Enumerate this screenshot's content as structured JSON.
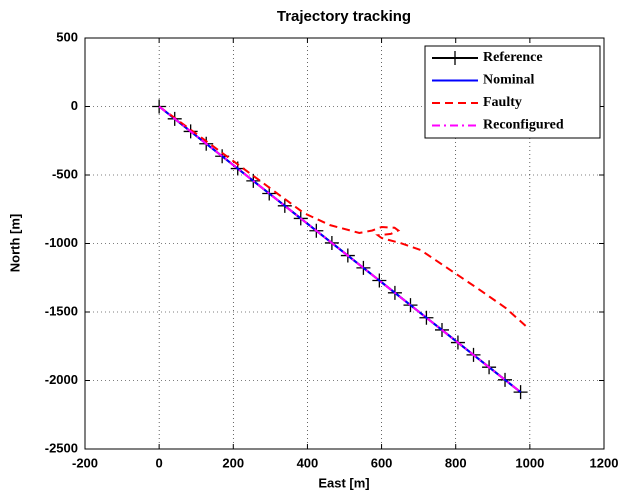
{
  "chart_data": {
    "type": "line",
    "title": "Trajectory tracking",
    "x_label": "East [m]",
    "y_label": "North [m]",
    "xlim": [
      -200,
      1200
    ],
    "ylim": [
      -2500,
      500
    ],
    "xticks": [
      -200,
      0,
      200,
      400,
      600,
      800,
      1000,
      1200
    ],
    "yticks": [
      -2500,
      -2000,
      -1500,
      -1000,
      -500,
      0,
      500
    ],
    "grid": true,
    "legend": "northeast",
    "series": [
      {
        "name": "Reference",
        "color": "#000000",
        "linestyle": "-",
        "marker": "+",
        "x": [
          0,
          42,
          85,
          127,
          170,
          212,
          254,
          297,
          339,
          382,
          424,
          466,
          509,
          551,
          594,
          636,
          678,
          721,
          763,
          806,
          848,
          890,
          933,
          975
        ],
        "values": [
          0,
          -90,
          -182,
          -272,
          -363,
          -453,
          -543,
          -635,
          -725,
          -817,
          -907,
          -996,
          -1088,
          -1178,
          -1270,
          -1360,
          -1450,
          -1542,
          -1631,
          -1723,
          -1813,
          -1903,
          -1995,
          -2085
        ]
      },
      {
        "name": "Nominal",
        "color": "#0000ff",
        "linestyle": "-",
        "x": [
          0,
          975
        ],
        "values": [
          0,
          -2085
        ]
      },
      {
        "name": "Faulty",
        "color": "#ff0000",
        "linestyle": "--",
        "x": [
          0,
          390,
          460,
          540,
          575,
          600,
          635,
          645,
          625,
          590,
          600,
          650,
          705,
          785,
          865,
          935,
          995
        ],
        "values": [
          0,
          -777,
          -865,
          -923,
          -905,
          -880,
          -885,
          -905,
          -930,
          -940,
          -960,
          -996,
          -1047,
          -1193,
          -1339,
          -1471,
          -1617
        ]
      },
      {
        "name": "Reconfigured",
        "color": "#ff00ff",
        "linestyle": "-.",
        "x": [
          0,
          975
        ],
        "values": [
          0,
          -2085
        ]
      }
    ]
  }
}
